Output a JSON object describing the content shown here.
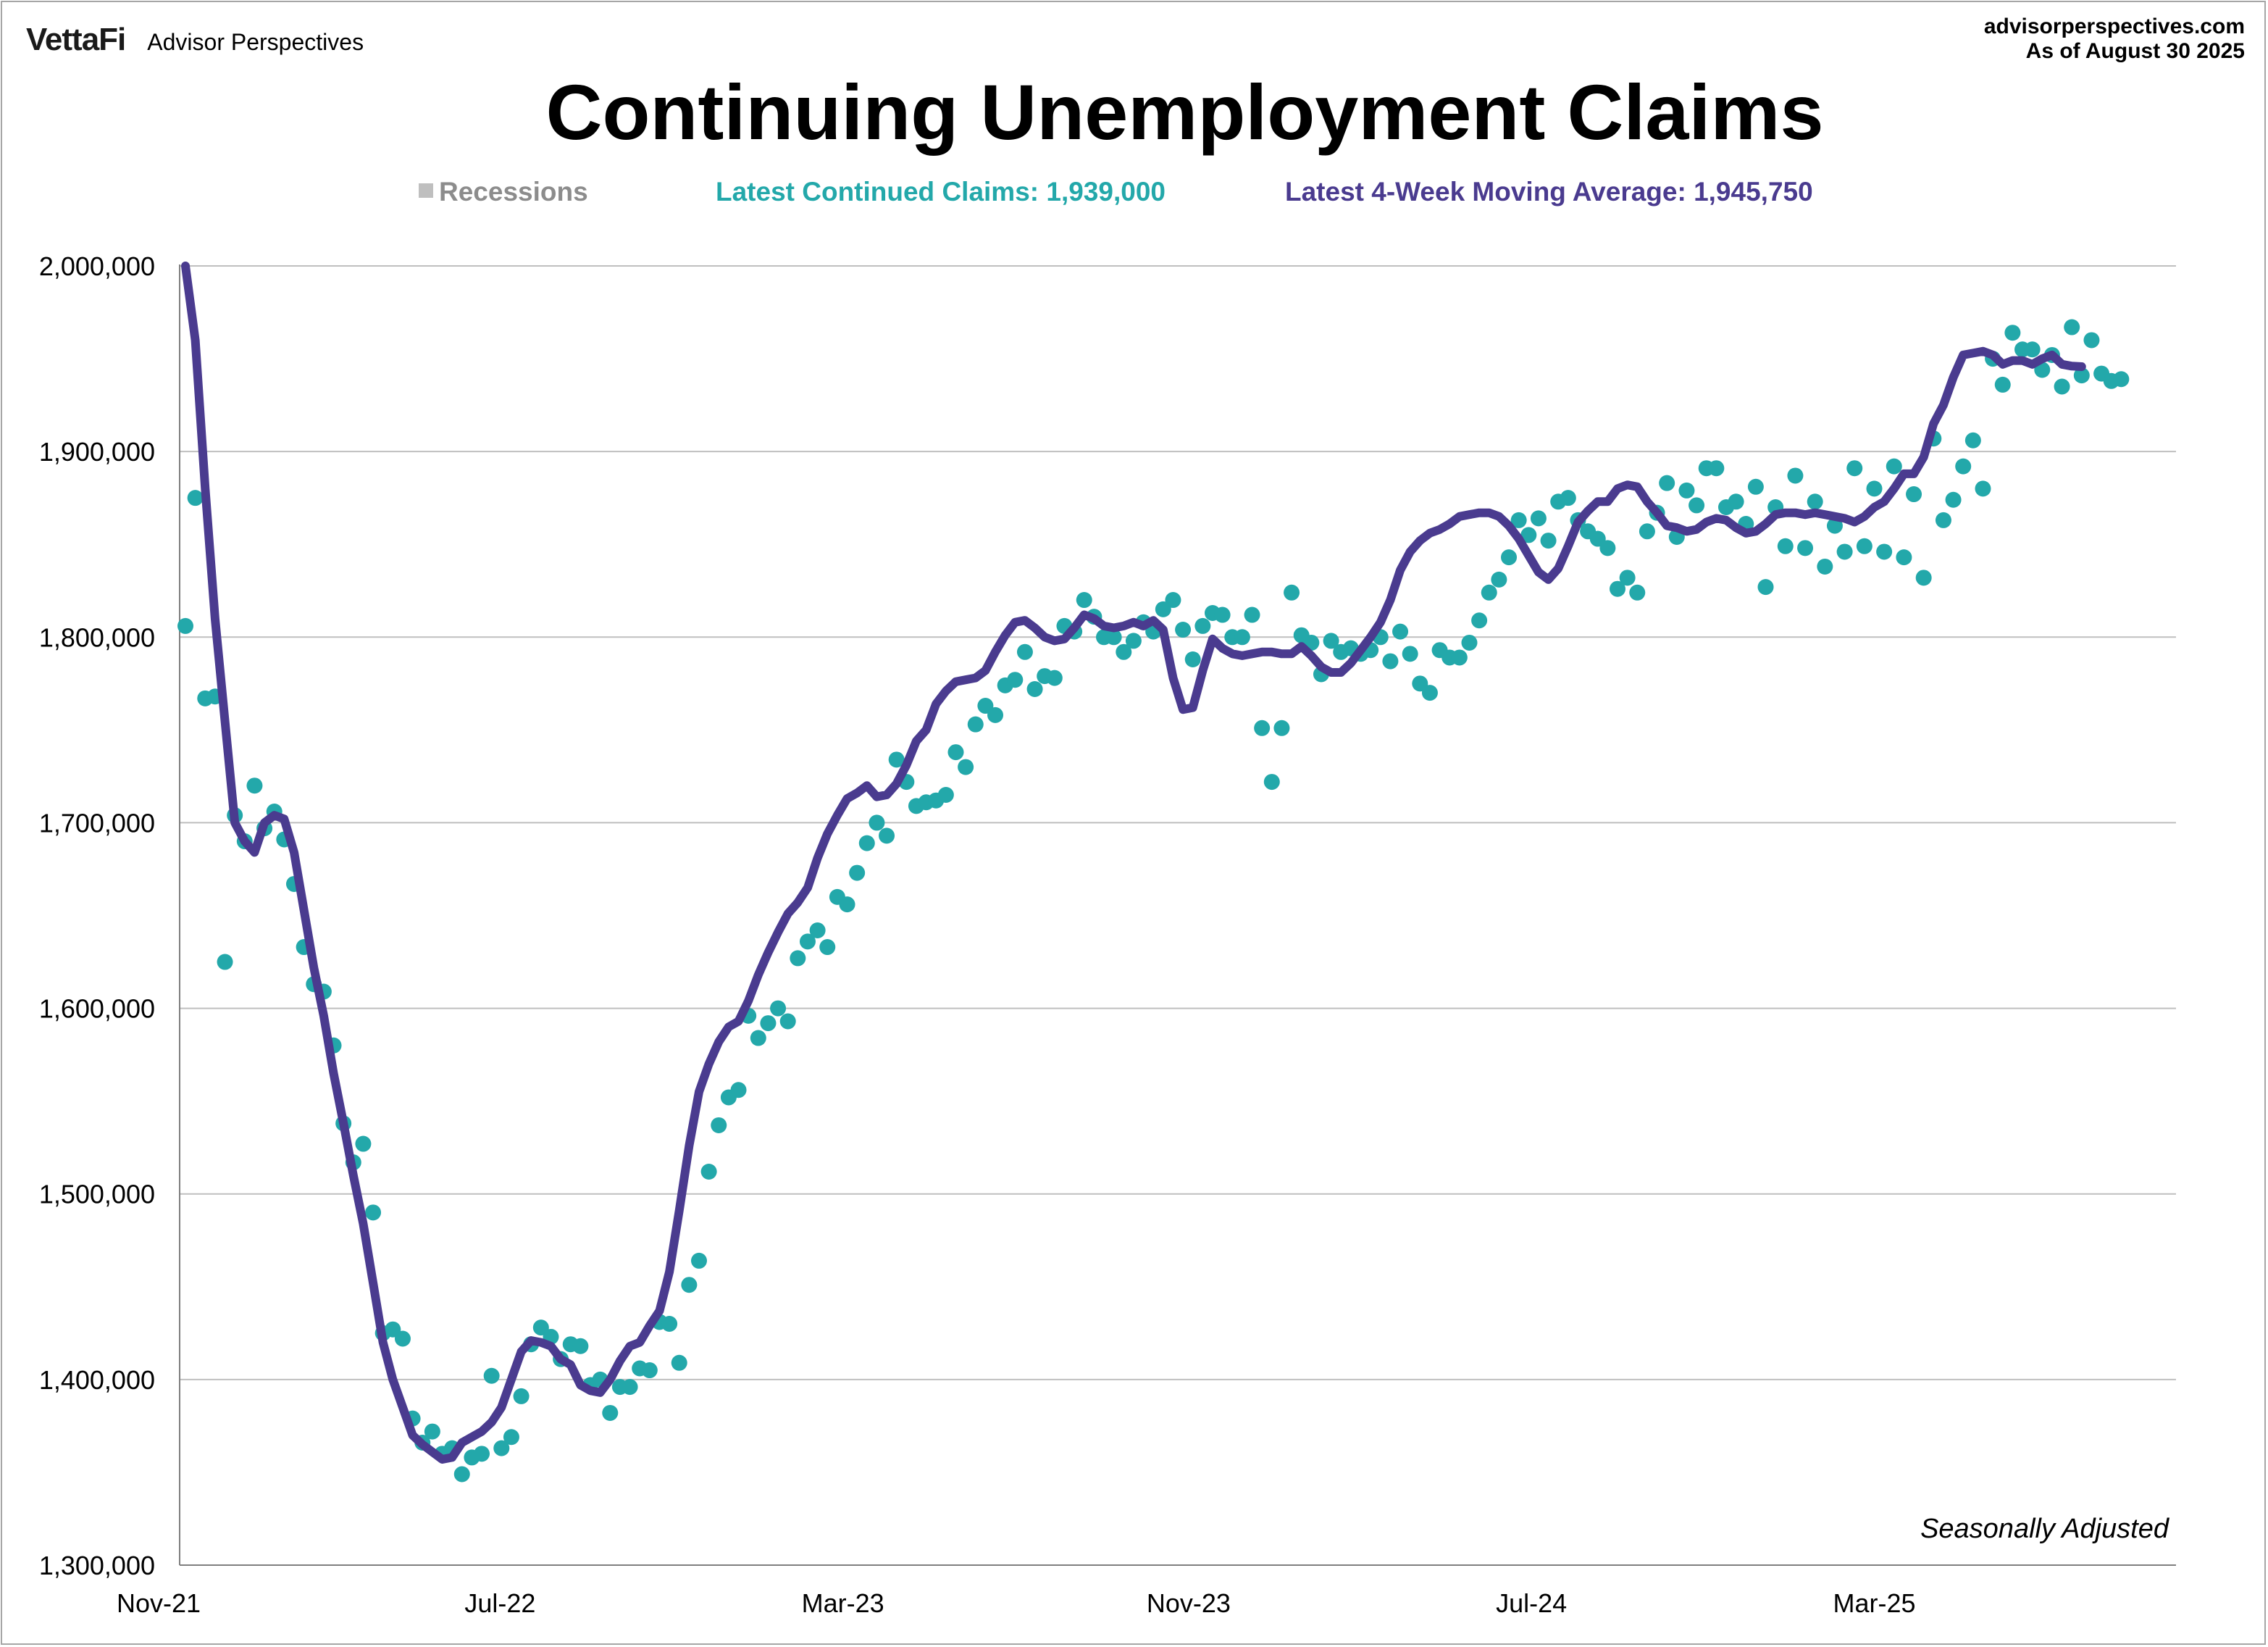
{
  "header": {
    "logo_text": "VettaFi",
    "brand_name": "Advisor Perspectives",
    "site": "advisorperspectives.com",
    "as_of": "As of August 30 2025"
  },
  "legend": {
    "recessions": "Recessions",
    "latest_claims": "Latest Continued Claims: 1,939,000",
    "latest_ma": "Latest 4-Week Moving Average: 1,945,750"
  },
  "colors": {
    "claims": "#23a8aa",
    "moving_average": "#4a3b8f",
    "recessions": "#bfbfbf",
    "grid": "#bfbfbf"
  },
  "chart_data": {
    "type": "scatter",
    "title": "Continuing Unemployment Claims",
    "note": "Seasonally Adjusted",
    "xlabel": "",
    "ylabel": "",
    "ylim": [
      1300000,
      2000000
    ],
    "yticks": [
      "2,000,000",
      "1,900,000",
      "1,800,000",
      "1,700,000",
      "1,600,000",
      "1,500,000",
      "1,400,000",
      "1,300,000"
    ],
    "yticks_values": [
      2000000,
      1900000,
      1800000,
      1700000,
      1600000,
      1500000,
      1400000,
      1300000
    ],
    "xlim": [
      "2021-11-20",
      "2025-08-30"
    ],
    "xticks": [
      {
        "label": "Nov-21",
        "date": "2021-11-01"
      },
      {
        "label": "Jul-22",
        "date": "2022-07-01"
      },
      {
        "label": "Mar-23",
        "date": "2023-03-01"
      },
      {
        "label": "Nov-23",
        "date": "2023-11-01"
      },
      {
        "label": "Jul-24",
        "date": "2024-07-01"
      },
      {
        "label": "Mar-25",
        "date": "2025-03-01"
      }
    ],
    "grid": true,
    "series": [
      {
        "name": "Latest Continued Claims",
        "type": "scatter",
        "start": "2021-11-20",
        "interval_days": 7,
        "values": [
          1806000,
          1875000,
          1767000,
          1768000,
          1625000,
          1704000,
          1690000,
          1720000,
          1697000,
          1706000,
          1691000,
          1667000,
          1633000,
          1613000,
          1609000,
          1580000,
          1538000,
          1517000,
          1527000,
          1490000,
          1425000,
          1427000,
          1422000,
          1379000,
          1366000,
          1372000,
          1360000,
          1363000,
          1349000,
          1358000,
          1360000,
          1402000,
          1363000,
          1369000,
          1391000,
          1419000,
          1428000,
          1423000,
          1411000,
          1419000,
          1418000,
          1397000,
          1400000,
          1382000,
          1396000,
          1396000,
          1406000,
          1405000,
          1431000,
          1430000,
          1409000,
          1451000,
          1464000,
          1512000,
          1537000,
          1552000,
          1556000,
          1596000,
          1584000,
          1592000,
          1600000,
          1593000,
          1627000,
          1636000,
          1642000,
          1633000,
          1660000,
          1656000,
          1673000,
          1689000,
          1700000,
          1693000,
          1734000,
          1722000,
          1709000,
          1711000,
          1712000,
          1715000,
          1738000,
          1730000,
          1753000,
          1763000,
          1758000,
          1774000,
          1777000,
          1792000,
          1772000,
          1779000,
          1778000,
          1806000,
          1803000,
          1820000,
          1811000,
          1800000,
          1800000,
          1792000,
          1798000,
          1808000,
          1803000,
          1815000,
          1820000,
          1804000,
          1788000,
          1806000,
          1813000,
          1812000,
          1800000,
          1800000,
          1812000,
          1751000,
          1722000,
          1751000,
          1824000,
          1801000,
          1797000,
          1780000,
          1798000,
          1792000,
          1794000,
          1791000,
          1793000,
          1800000,
          1787000,
          1803000,
          1791000,
          1775000,
          1770000,
          1793000,
          1789000,
          1789000,
          1797000,
          1809000,
          1824000,
          1831000,
          1843000,
          1863000,
          1855000,
          1864000,
          1852000,
          1873000,
          1875000,
          1863000,
          1857000,
          1853000,
          1848000,
          1826000,
          1832000,
          1824000,
          1857000,
          1867000,
          1883000,
          1854000,
          1879000,
          1871000,
          1891000,
          1891000,
          1870000,
          1873000,
          1861000,
          1881000,
          1827000,
          1870000,
          1849000,
          1887000,
          1848000,
          1873000,
          1838000,
          1860000,
          1846000,
          1891000,
          1849000,
          1880000,
          1846000,
          1892000,
          1843000,
          1877000,
          1832000,
          1907000,
          1863000,
          1874000,
          1892000,
          1906000,
          1880000,
          1950000,
          1936000,
          1964000,
          1955000,
          1955000,
          1944000,
          1952000,
          1935000,
          1967000,
          1941000,
          1960000,
          1942000,
          1938000,
          1939000
        ]
      },
      {
        "name": "Latest 4-Week Moving Average",
        "type": "line",
        "start": "2021-11-20",
        "interval_days": 7,
        "values": [
          2000000,
          1960000,
          1880000,
          1810000,
          1755000,
          1700000,
          1690000,
          1684000,
          1700000,
          1704000,
          1702000,
          1684000,
          1653000,
          1622000,
          1596000,
          1565000,
          1538000,
          1510000,
          1484000,
          1452000,
          1420000,
          1400000,
          1385000,
          1370000,
          1365000,
          1361000,
          1357000,
          1358000,
          1366000,
          1369000,
          1372000,
          1377000,
          1385000,
          1400000,
          1415000,
          1421000,
          1420000,
          1418000,
          1411000,
          1408000,
          1397000,
          1394000,
          1393000,
          1400000,
          1410000,
          1418000,
          1420000,
          1429000,
          1437000,
          1458000,
          1491000,
          1526000,
          1555000,
          1570000,
          1582000,
          1590000,
          1593000,
          1604000,
          1618000,
          1630000,
          1641000,
          1651000,
          1657000,
          1665000,
          1681000,
          1694000,
          1704000,
          1713000,
          1716000,
          1720000,
          1714000,
          1715000,
          1721000,
          1731000,
          1744000,
          1750000,
          1764000,
          1771000,
          1776000,
          1777000,
          1778000,
          1782000,
          1792000,
          1801000,
          1808000,
          1809000,
          1805000,
          1800000,
          1798000,
          1799000,
          1805000,
          1812000,
          1810000,
          1806000,
          1805000,
          1806000,
          1808000,
          1806000,
          1809000,
          1804000,
          1778000,
          1761000,
          1762000,
          1782000,
          1799000,
          1794000,
          1791000,
          1790000,
          1791000,
          1792000,
          1792000,
          1791000,
          1791000,
          1795000,
          1790000,
          1784000,
          1781000,
          1781000,
          1786000,
          1793000,
          1800000,
          1808000,
          1820000,
          1836000,
          1846000,
          1852000,
          1856000,
          1858000,
          1861000,
          1865000,
          1866000,
          1867000,
          1867000,
          1865000,
          1860000,
          1853000,
          1844000,
          1835000,
          1831000,
          1837000,
          1849000,
          1862000,
          1868000,
          1873000,
          1873000,
          1880000,
          1882000,
          1881000,
          1873000,
          1867000,
          1860000,
          1859000,
          1857000,
          1858000,
          1862000,
          1864000,
          1863000,
          1859000,
          1856000,
          1857000,
          1861000,
          1866000,
          1867000,
          1867000,
          1866000,
          1867000,
          1866000,
          1865000,
          1864000,
          1862000,
          1865000,
          1870000,
          1873000,
          1880000,
          1888000,
          1888000,
          1897000,
          1915000,
          1925000,
          1940000,
          1952000,
          1953000,
          1954000,
          1952000,
          1947000,
          1949000,
          1949000,
          1947000,
          1950000,
          1952000,
          1947000,
          1946000,
          1945750
        ]
      }
    ],
    "legend_position": "top"
  }
}
